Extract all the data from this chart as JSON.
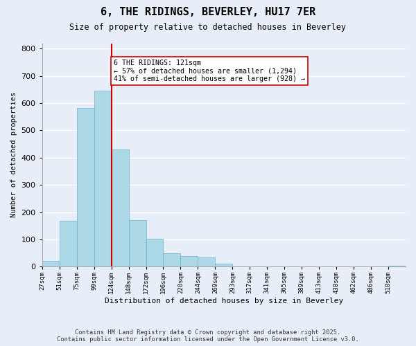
{
  "title": "6, THE RIDINGS, BEVERLEY, HU17 7ER",
  "subtitle": "Size of property relative to detached houses in Beverley",
  "xlabel": "Distribution of detached houses by size in Beverley",
  "ylabel": "Number of detached properties",
  "bar_color": "#add8e6",
  "bar_edge_color": "#6ab0d4",
  "marker_line_color": "#cc0000",
  "marker_value": 4,
  "marker_label": "6 THE RIDINGS: 121sqm",
  "annotation_line1": "← 57% of detached houses are smaller (1,294)",
  "annotation_line2": "41% of semi-detached houses are larger (928) →",
  "categories": [
    "27sqm",
    "51sqm",
    "75sqm",
    "99sqm",
    "124sqm",
    "148sqm",
    "172sqm",
    "196sqm",
    "220sqm",
    "244sqm",
    "269sqm",
    "293sqm",
    "317sqm",
    "341sqm",
    "365sqm",
    "389sqm",
    "413sqm",
    "438sqm",
    "462sqm",
    "486sqm",
    "510sqm"
  ],
  "values": [
    20,
    168,
    583,
    645,
    430,
    172,
    101,
    50,
    40,
    33,
    12,
    0,
    0,
    0,
    0,
    0,
    0,
    0,
    0,
    0,
    3
  ],
  "ylim": [
    0,
    820
  ],
  "yticks": [
    0,
    100,
    200,
    300,
    400,
    500,
    600,
    700,
    800
  ],
  "background_color": "#e8eef8",
  "footnote_line1": "Contains HM Land Registry data © Crown copyright and database right 2025.",
  "footnote_line2": "Contains public sector information licensed under the Open Government Licence v3.0."
}
